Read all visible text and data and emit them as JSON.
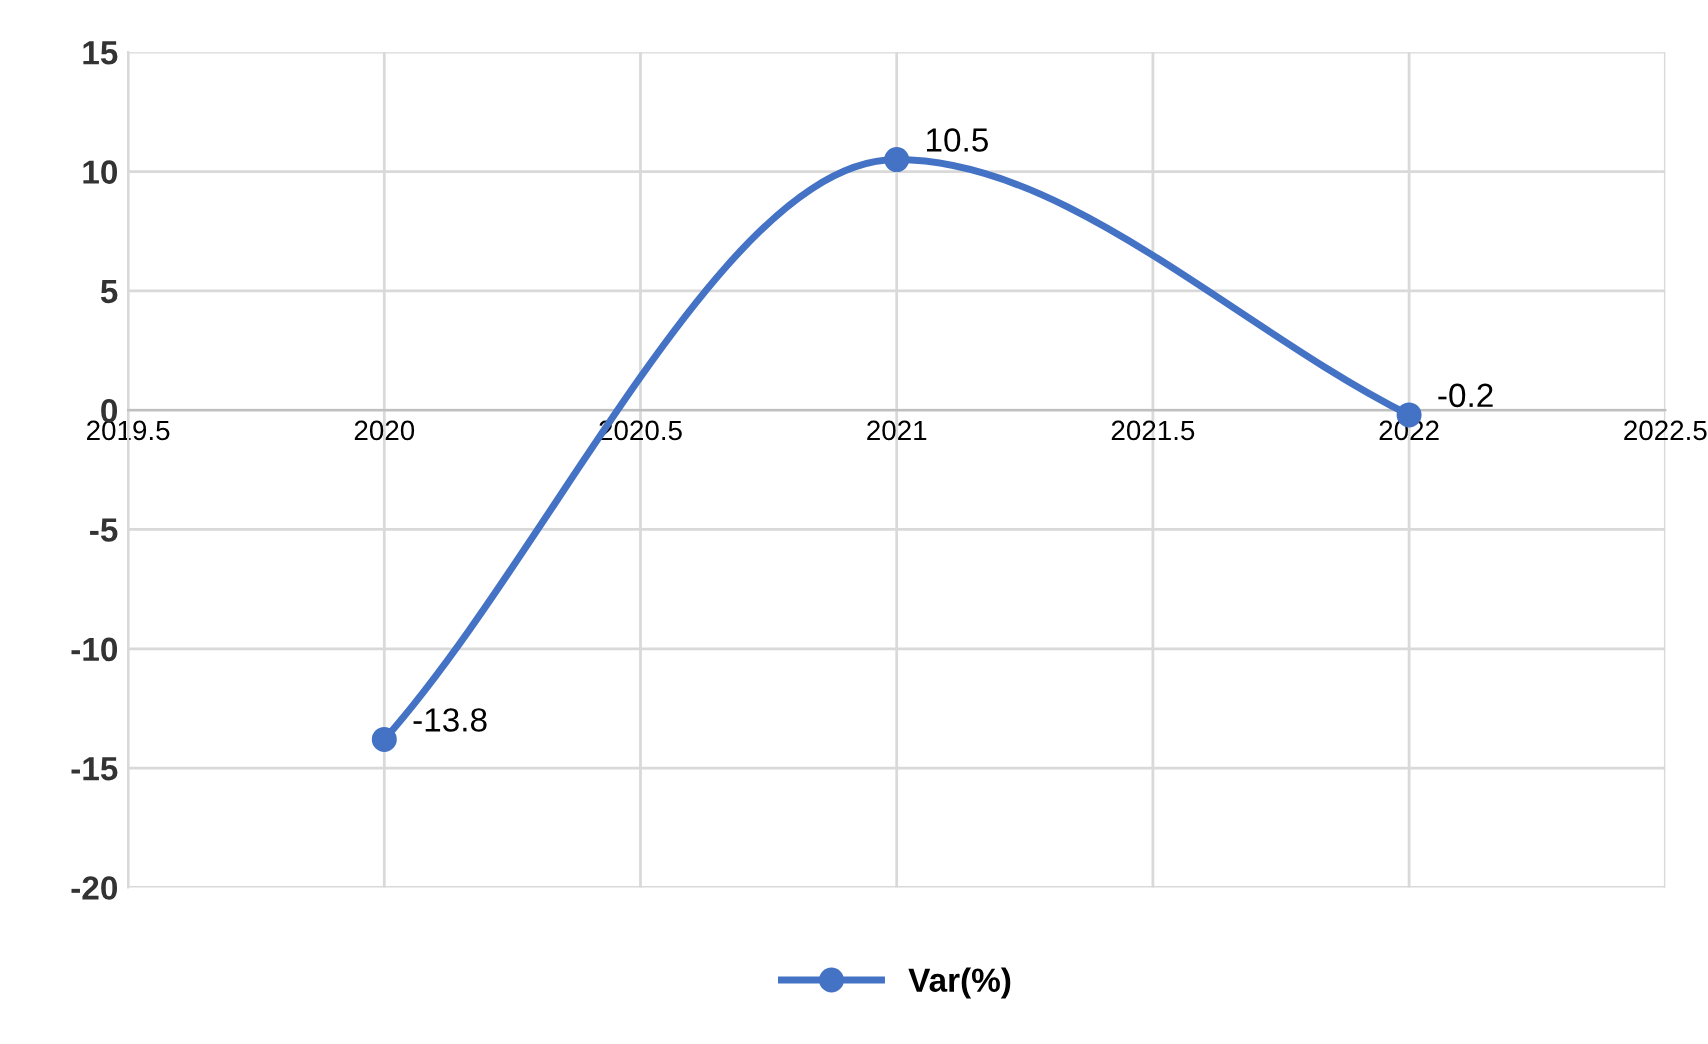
{
  "chart_data": {
    "type": "line",
    "x": [
      2020,
      2021,
      2022
    ],
    "series": [
      {
        "name": "Var(%)",
        "color": "#4472c4",
        "values": [
          -13.8,
          10.5,
          -0.2
        ]
      }
    ],
    "xlim": [
      2019.5,
      2022.5
    ],
    "xticks": [
      2019.5,
      2020,
      2020.5,
      2021,
      2021.5,
      2022,
      2022.5
    ],
    "ylim": [
      -20,
      15
    ],
    "yticks": [
      -20,
      -15,
      -10,
      -5,
      0,
      5,
      10,
      15
    ],
    "grid": true,
    "legend": "bottom",
    "marker": "circle",
    "line_style": "solid",
    "data_labels": true
  }
}
